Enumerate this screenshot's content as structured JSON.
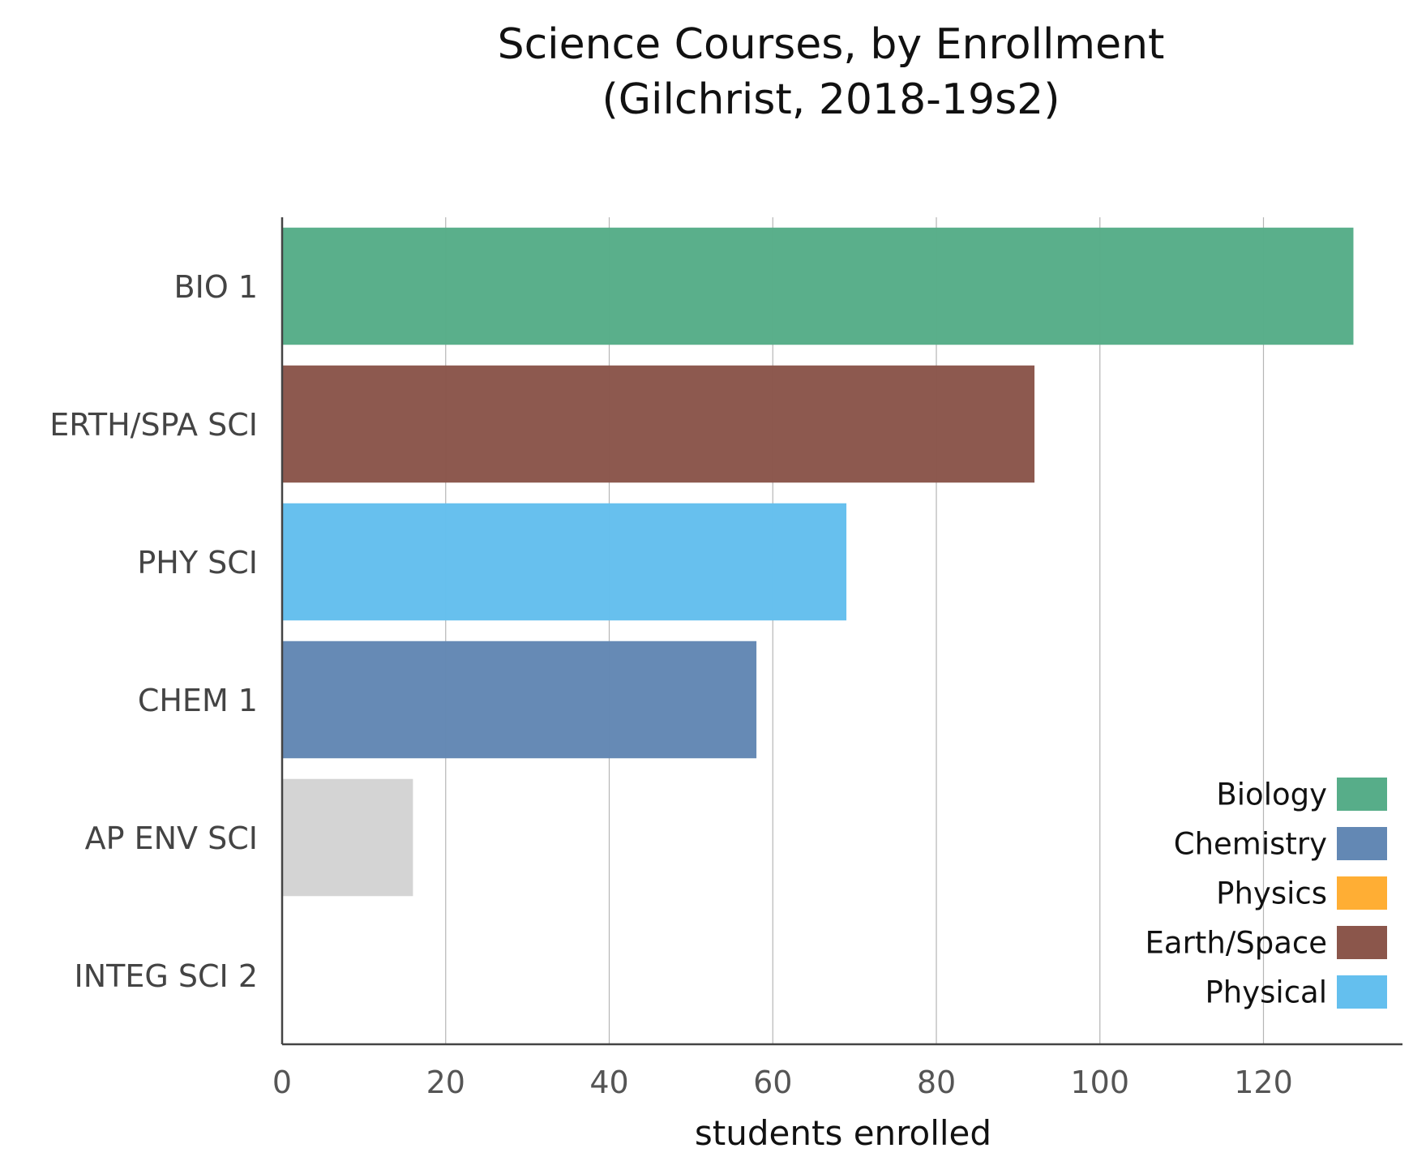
{
  "chart_data": {
    "type": "bar",
    "orientation": "horizontal",
    "title": [
      "Science Courses, by Enrollment",
      "(Gilchrist, 2018-19s2)"
    ],
    "xlabel": "students enrolled",
    "ylabel": "",
    "xlim": [
      0,
      137
    ],
    "xticks": [
      0,
      20,
      40,
      60,
      80,
      100,
      120
    ],
    "grid": "vertical",
    "categories": [
      "BIO 1",
      "ERTH/SPA SCI",
      "PHY SCI",
      "CHEM 1",
      "AP ENV SCI",
      "INTEG SCI 2"
    ],
    "values": [
      131,
      92,
      69,
      58,
      16,
      0
    ],
    "bar_colors": [
      "#57ad89",
      "#8b564b",
      "#64bfee",
      "#6388b4",
      "#d3d3d3",
      "#d3d3d3"
    ],
    "legend": {
      "placement": "bottom-right",
      "entries": [
        {
          "label": "Biology",
          "color": "#57ad89"
        },
        {
          "label": "Chemistry",
          "color": "#6388b4"
        },
        {
          "label": "Physics",
          "color": "#ffae34"
        },
        {
          "label": "Earth/Space",
          "color": "#8b564b"
        },
        {
          "label": "Physical",
          "color": "#64bfee"
        }
      ]
    }
  }
}
